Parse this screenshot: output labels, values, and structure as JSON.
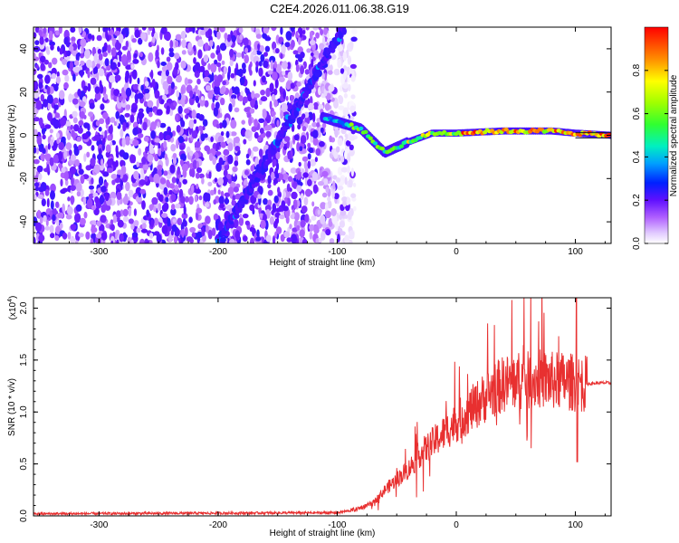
{
  "title": "C2E4.2026.011.06.38.G19",
  "chart_data": [
    {
      "type": "heatmap",
      "title": "C2E4.2026.011.06.38.G19",
      "xlabel": "Height of straight line (km)",
      "ylabel": "Frequency (Hz)",
      "xlim": [
        -355,
        130
      ],
      "ylim": [
        -50,
        50
      ],
      "xticks": [
        -300,
        -200,
        -100,
        0,
        100
      ],
      "yticks": [
        -40,
        -20,
        0,
        20,
        40
      ],
      "xtick_labels": [
        "-300",
        "-200",
        "-100",
        "0",
        "100"
      ],
      "ytick_labels": [
        "-40",
        "-20",
        "0",
        "20",
        "40"
      ],
      "colorbar": {
        "label": "Normalized spectral amplitude",
        "range": [
          0,
          1
        ],
        "ticks": [
          0.0,
          0.2,
          0.4,
          0.6,
          0.8
        ],
        "tick_labels": [
          "0.0",
          "0.2",
          "0.4",
          "0.6",
          "0.8"
        ],
        "colors": [
          "#ffffff",
          "#d8b8ff",
          "#a040ff",
          "#3000ff",
          "#0060ff",
          "#00d0ff",
          "#00ff80",
          "#60ff00",
          "#ffff00",
          "#ff8000",
          "#ff0000"
        ]
      },
      "features": {
        "noise_region_x": [
          -355,
          -95
        ],
        "diagonal_line": {
          "x": [
            -200,
            -95
          ],
          "y": [
            -50,
            50
          ]
        },
        "signal_line": {
          "x": [
            -110,
            -80,
            -60,
            -40,
            -20,
            0,
            40,
            80,
            100,
            130
          ],
          "y": [
            8,
            3,
            -8,
            -3,
            1,
            1,
            2,
            2,
            1,
            0
          ]
        }
      }
    },
    {
      "type": "line",
      "xlabel": "Height of straight line (km)",
      "ylabel": "SNR (10 * v/v)",
      "yscale_label": "(x10",
      "yscale_exp": "4",
      "yscale_close": ")",
      "xlim": [
        -355,
        130
      ],
      "ylim": [
        0,
        2.1
      ],
      "xticks": [
        -300,
        -200,
        -100,
        0,
        100
      ],
      "yticks": [
        0.0,
        0.5,
        1.0,
        1.5,
        2.0
      ],
      "xtick_labels": [
        "-300",
        "-200",
        "-100",
        "0",
        "100"
      ],
      "ytick_labels": [
        "0.0",
        "0.5",
        "1.0",
        "1.5",
        "2.0"
      ],
      "series": [
        {
          "name": "SNR",
          "color": "#e83030",
          "x": [
            -355,
            -100,
            -85,
            -70,
            -60,
            -50,
            -40,
            -30,
            -20,
            -10,
            0,
            10,
            20,
            30,
            40,
            50,
            60,
            70,
            80,
            90,
            100,
            110,
            120,
            130
          ],
          "y": [
            0.02,
            0.03,
            0.06,
            0.12,
            0.25,
            0.35,
            0.45,
            0.6,
            0.7,
            0.8,
            0.9,
            1.0,
            1.1,
            1.2,
            1.27,
            1.3,
            1.3,
            1.32,
            1.3,
            1.3,
            1.28,
            1.27,
            1.28,
            1.28
          ]
        }
      ]
    }
  ]
}
